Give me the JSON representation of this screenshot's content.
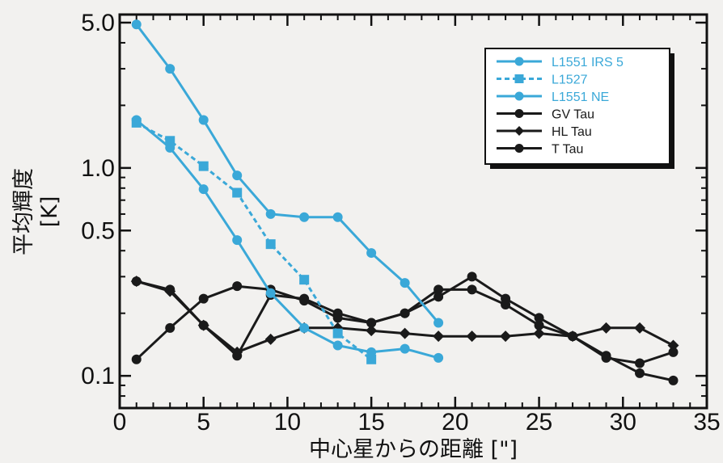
{
  "chart_data": {
    "type": "line",
    "title": "",
    "xlabel": "中心星からの距離 [\"]",
    "ylabel_line1": "平均輝度",
    "ylabel_line2": "[K]",
    "xlim": [
      0,
      35
    ],
    "ylim": [
      0.07,
      5.0
    ],
    "yscale": "log",
    "grid": false,
    "legend_position": "top-right",
    "x_ticks": [
      0,
      5,
      10,
      15,
      20,
      25,
      30,
      35
    ],
    "x_tick_labels": [
      "0",
      "5",
      "10",
      "15",
      "20",
      "25",
      "30",
      "35"
    ],
    "y_ticks": [
      0.1,
      0.5,
      1.0,
      5.0
    ],
    "y_tick_labels": [
      "0.1",
      "0.5",
      "1.0",
      "5.0"
    ],
    "series": [
      {
        "name": "L1551 IRS 5",
        "color": "#3aa8d8",
        "line": "solid",
        "marker": "circle",
        "x": [
          1,
          3,
          5,
          7,
          9,
          11,
          13,
          15,
          17,
          19
        ],
        "y": [
          4.9,
          3.0,
          1.7,
          0.92,
          0.6,
          0.58,
          0.58,
          0.39,
          0.28,
          0.18
        ]
      },
      {
        "name": "L1527",
        "color": "#3aa8d8",
        "line": "dashed",
        "marker": "square",
        "x": [
          1,
          3,
          5,
          7,
          9,
          11,
          13,
          15
        ],
        "y": [
          1.65,
          1.35,
          1.02,
          0.76,
          0.43,
          0.29,
          0.16,
          0.12
        ]
      },
      {
        "name": "L1551 NE",
        "color": "#3aa8d8",
        "line": "solid",
        "marker": "circle",
        "x": [
          1,
          3,
          5,
          7,
          9,
          11,
          13,
          15,
          17,
          19
        ],
        "y": [
          1.7,
          1.25,
          0.79,
          0.45,
          0.25,
          0.17,
          0.14,
          0.13,
          0.135,
          0.122
        ]
      },
      {
        "name": "GV Tau",
        "color": "#1a1a1a",
        "line": "solid",
        "marker": "circle",
        "x": [
          1,
          3,
          5,
          7,
          9,
          11,
          13,
          15,
          17,
          19,
          21,
          23,
          25,
          27,
          29,
          31,
          33
        ],
        "y": [
          0.285,
          0.26,
          0.175,
          0.125,
          0.245,
          0.235,
          0.2,
          0.18,
          0.2,
          0.26,
          0.26,
          0.22,
          0.175,
          0.155,
          0.125,
          0.103,
          0.095
        ]
      },
      {
        "name": "HL Tau",
        "color": "#1a1a1a",
        "line": "solid",
        "marker": "diamond",
        "x": [
          1,
          3,
          5,
          7,
          9,
          11,
          13,
          15,
          17,
          19,
          21,
          23,
          25,
          27,
          29,
          31,
          33
        ],
        "y": [
          0.285,
          0.255,
          0.175,
          0.13,
          0.15,
          0.17,
          0.17,
          0.165,
          0.16,
          0.155,
          0.155,
          0.155,
          0.16,
          0.155,
          0.17,
          0.17,
          0.14
        ]
      },
      {
        "name": "T Tau",
        "color": "#1a1a1a",
        "line": "solid",
        "marker": "circle",
        "x": [
          1,
          3,
          5,
          7,
          9,
          11,
          13,
          15,
          17,
          19,
          21,
          23,
          25,
          27,
          29,
          31,
          33
        ],
        "y": [
          0.12,
          0.17,
          0.235,
          0.27,
          0.26,
          0.23,
          0.19,
          0.18,
          0.2,
          0.24,
          0.3,
          0.235,
          0.19,
          0.155,
          0.122,
          0.115,
          0.13
        ]
      }
    ]
  }
}
